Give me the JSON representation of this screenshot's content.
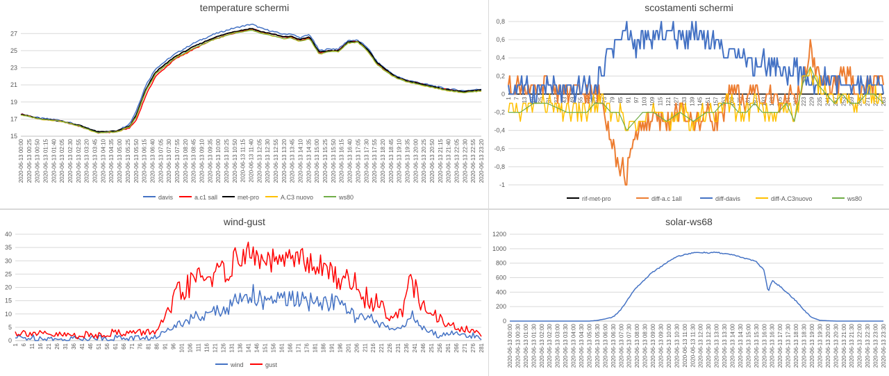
{
  "chart_data": [
    {
      "type": "line",
      "title": "temperature schermi",
      "ylim": [
        15,
        28
      ],
      "yticks": [
        15,
        17,
        19,
        21,
        23,
        25,
        27
      ],
      "x_labels": [
        "2020-06-13 00:00",
        "2020-06-13 00:25",
        "2020-06-13 00:50",
        "2020-06-13 01:15",
        "2020-06-13 01:40",
        "2020-06-13 02:05",
        "2020-06-13 02:30",
        "2020-06-13 02:55",
        "2020-06-13 03:20",
        "2020-06-13 03:45",
        "2020-06-13 04:10",
        "2020-06-13 04:35",
        "2020-06-13 05:00",
        "2020-06-13 05:25",
        "2020-06-13 05:50",
        "2020-06-13 06:15",
        "2020-06-13 06:40",
        "2020-06-13 07:05",
        "2020-06-13 07:30",
        "2020-06-13 07:55",
        "2020-06-13 08:20",
        "2020-06-13 08:45",
        "2020-06-13 09:10",
        "2020-06-13 09:35",
        "2020-06-13 10:00",
        "2020-06-13 10:25",
        "2020-06-13 10:50",
        "2020-06-13 11:15",
        "2020-06-13 11:40",
        "2020-06-13 12:05",
        "2020-06-13 12:30",
        "2020-06-13 12:55",
        "2020-06-13 13:20",
        "2020-06-13 13:45",
        "2020-06-13 14:10",
        "2020-06-13 14:35",
        "2020-06-13 15:00",
        "2020-06-13 15:25",
        "2020-06-13 15:50",
        "2020-06-13 16:15",
        "2020-06-13 16:40",
        "2020-06-13 17:05",
        "2020-06-13 17:30",
        "2020-06-13 17:55",
        "2020-06-13 18:20",
        "2020-06-13 18:45",
        "2020-06-13 19:10",
        "2020-06-13 19:35",
        "2020-06-13 20:00",
        "2020-06-13 20:25",
        "2020-06-13 20:50",
        "2020-06-13 21:15",
        "2020-06-13 21:40",
        "2020-06-13 22:05",
        "2020-06-13 22:30",
        "2020-06-13 22:55",
        "2020-06-13 23:20"
      ],
      "key_x": [
        0,
        12,
        24,
        36,
        48,
        60,
        68,
        72,
        78,
        84,
        96,
        108,
        120,
        132,
        144,
        150,
        156,
        164,
        168,
        174,
        180,
        186,
        192,
        198,
        204,
        210,
        216,
        222,
        228,
        234,
        240,
        252,
        264,
        276,
        287
      ],
      "series": [
        {
          "name": "davis",
          "color": "#4472c4",
          "values": [
            17.6,
            17.1,
            16.9,
            16.3,
            15.5,
            15.6,
            16.5,
            18.0,
            21.0,
            22.9,
            24.6,
            25.9,
            26.9,
            27.6,
            28.1,
            27.6,
            27.3,
            26.9,
            27.0,
            26.5,
            26.9,
            25.0,
            25.2,
            25.2,
            26.2,
            26.2,
            25.4,
            23.7,
            22.8,
            22.0,
            21.6,
            21.1,
            20.6,
            20.3,
            20.5
          ]
        },
        {
          "name": "a.c1 sall",
          "color": "#ff0000",
          "values": [
            17.6,
            17.0,
            16.8,
            16.2,
            15.4,
            15.5,
            16.0,
            16.9,
            19.8,
            22.0,
            24.0,
            25.2,
            26.3,
            27.0,
            27.6,
            27.2,
            27.0,
            26.6,
            26.6,
            26.2,
            26.5,
            24.7,
            25.0,
            25.0,
            26.0,
            26.1,
            25.1,
            23.5,
            22.6,
            21.9,
            21.5,
            21.0,
            20.5,
            20.2,
            20.4
          ]
        },
        {
          "name": "met-pro",
          "color": "#000000",
          "values": [
            17.6,
            17.0,
            16.8,
            16.3,
            15.5,
            15.6,
            16.2,
            17.5,
            20.5,
            22.5,
            24.3,
            25.5,
            26.5,
            27.2,
            27.6,
            27.2,
            27.0,
            26.6,
            26.7,
            26.3,
            26.6,
            24.8,
            25.0,
            25.0,
            26.0,
            26.1,
            25.2,
            23.6,
            22.7,
            21.9,
            21.5,
            21.0,
            20.5,
            20.2,
            20.4
          ]
        },
        {
          "name": "A.C3 nuovo",
          "color": "#ffc000",
          "values": [
            17.5,
            17.0,
            16.8,
            16.2,
            15.4,
            15.5,
            16.1,
            17.3,
            20.3,
            22.3,
            24.1,
            25.3,
            26.3,
            27.0,
            27.4,
            27.0,
            26.8,
            26.4,
            26.5,
            26.1,
            26.4,
            24.6,
            24.9,
            24.9,
            25.9,
            26.0,
            25.0,
            23.4,
            22.5,
            21.8,
            21.4,
            20.9,
            20.4,
            20.1,
            20.3
          ]
        },
        {
          "name": "ws80",
          "color": "#70ad47",
          "values": [
            17.5,
            17.0,
            16.8,
            16.2,
            15.4,
            15.5,
            16.1,
            17.3,
            20.3,
            22.3,
            24.1,
            25.3,
            26.3,
            27.0,
            27.4,
            27.0,
            26.8,
            26.4,
            26.5,
            26.1,
            26.4,
            24.6,
            24.9,
            24.9,
            25.9,
            26.0,
            25.0,
            23.4,
            22.5,
            21.8,
            21.4,
            20.9,
            20.4,
            20.1,
            20.3
          ]
        }
      ]
    },
    {
      "type": "line",
      "title": "scostamenti schermi",
      "ylim": [
        -1,
        0.8
      ],
      "yticks": [
        "0,8",
        "0,6",
        "0,4",
        "0,2",
        "0",
        "-0,2",
        "-0,4",
        "-0,6",
        "-0,8",
        "-1"
      ],
      "ytick_values": [
        0.8,
        0.6,
        0.4,
        0.2,
        0,
        -0.2,
        -0.4,
        -0.6,
        -0.8,
        -1
      ],
      "x_labels": [
        "1",
        "7",
        "13",
        "19",
        "25",
        "31",
        "37",
        "43",
        "49",
        "55",
        "61",
        "67",
        "73",
        "79",
        "85",
        "91",
        "97",
        "103",
        "109",
        "115",
        "121",
        "127",
        "133",
        "139",
        "145",
        "151",
        "157",
        "163",
        "169",
        "175",
        "181",
        "187",
        "193",
        "199",
        "205",
        "211",
        "217",
        "223",
        "229",
        "235",
        "241",
        "247",
        "253",
        "259",
        "265",
        "271",
        "277",
        "283"
      ],
      "key_x": [
        1,
        10,
        20,
        30,
        45,
        60,
        66,
        72,
        78,
        84,
        90,
        96,
        102,
        110,
        120,
        130,
        140,
        150,
        156,
        162,
        168,
        174,
        180,
        186,
        192,
        198,
        204,
        210,
        216,
        222,
        228,
        234,
        240,
        246,
        252,
        258,
        264,
        270,
        276,
        283
      ],
      "series": [
        {
          "name": "rif-met-pro",
          "color": "#000000",
          "values": [
            0,
            0,
            0,
            0,
            0,
            0,
            0,
            0,
            0,
            0,
            0,
            0,
            0,
            0,
            0,
            0,
            0,
            0,
            0,
            0,
            0,
            0,
            0,
            0,
            0,
            0,
            0,
            0,
            0,
            0,
            0,
            0,
            0,
            0,
            0,
            0,
            0,
            0,
            0,
            0
          ]
        },
        {
          "name": "diff-a.c 1all",
          "color": "#ed7d31",
          "values": [
            0.1,
            0.1,
            0,
            0.1,
            0,
            0,
            0,
            -0.1,
            -0.4,
            -0.8,
            -0.9,
            -0.5,
            -0.3,
            -0.3,
            -0.3,
            -0.2,
            -0.3,
            -0.2,
            -0.3,
            -0.2,
            0,
            0,
            -0.1,
            0.1,
            -0.1,
            0,
            -0.1,
            0,
            -0.1,
            0.1,
            0.5,
            0.2,
            0.1,
            0.1,
            0.2,
            0.2,
            0.1,
            0.1,
            0.1,
            0.1
          ]
        },
        {
          "name": "diff-davis",
          "color": "#4472c4",
          "values": [
            0,
            0.1,
            0,
            0.1,
            0,
            0.1,
            0,
            0.3,
            0.5,
            0.6,
            0.7,
            0.5,
            0.6,
            0.6,
            0.7,
            0.6,
            0.7,
            0.6,
            0.6,
            0.5,
            0.4,
            0.5,
            0.4,
            0.3,
            0.4,
            0.3,
            0.3,
            0.2,
            0.3,
            0.2,
            0.1,
            0.1,
            0.2,
            0.1,
            0.1,
            0,
            0.1,
            0.1,
            0.1,
            0
          ]
        },
        {
          "name": "diff-A.C3nuovo",
          "color": "#ffc000",
          "values": [
            -0.2,
            -0.2,
            -0.1,
            -0.1,
            -0.2,
            -0.2,
            -0.1,
            -0.1,
            -0.2,
            -0.2,
            -0.4,
            -0.3,
            -0.2,
            -0.2,
            -0.3,
            -0.2,
            -0.3,
            -0.2,
            -0.2,
            -0.1,
            -0.1,
            -0.2,
            -0.2,
            -0.1,
            -0.2,
            -0.2,
            -0.2,
            -0.1,
            -0.3,
            0.1,
            0.3,
            0.1,
            0,
            -0.1,
            0,
            -0.1,
            -0.1,
            0,
            0,
            -0.1
          ]
        },
        {
          "name": "ws80",
          "color": "#70ad47",
          "values": [
            -0.2,
            -0.2,
            -0.1,
            -0.1,
            -0.2,
            -0.2,
            -0.1,
            -0.1,
            -0.2,
            -0.2,
            -0.4,
            -0.3,
            -0.2,
            -0.2,
            -0.3,
            -0.2,
            -0.3,
            -0.2,
            -0.2,
            -0.1,
            -0.1,
            -0.2,
            -0.2,
            -0.1,
            -0.2,
            -0.2,
            -0.2,
            -0.1,
            -0.3,
            0.1,
            0.3,
            0.1,
            0,
            -0.1,
            0,
            -0.1,
            -0.1,
            0,
            0,
            -0.1
          ]
        }
      ]
    },
    {
      "type": "line",
      "title": "wind-gust",
      "ylim": [
        0,
        40
      ],
      "yticks": [
        0,
        5,
        10,
        15,
        20,
        25,
        30,
        35,
        40
      ],
      "x_labels": [
        "1",
        "6",
        "11",
        "16",
        "21",
        "26",
        "31",
        "36",
        "41",
        "46",
        "51",
        "56",
        "61",
        "66",
        "71",
        "76",
        "81",
        "86",
        "91",
        "96",
        "101",
        "106",
        "111",
        "116",
        "121",
        "126",
        "131",
        "136",
        "141",
        "146",
        "151",
        "156",
        "161",
        "166",
        "171",
        "176",
        "181",
        "186",
        "191",
        "196",
        "201",
        "206",
        "211",
        "216",
        "221",
        "226",
        "231",
        "236",
        "241",
        "246",
        "251",
        "256",
        "261",
        "266",
        "271",
        "276",
        "281"
      ],
      "key_x": [
        1,
        10,
        20,
        30,
        40,
        50,
        60,
        70,
        80,
        88,
        94,
        100,
        106,
        112,
        118,
        124,
        130,
        136,
        142,
        148,
        154,
        160,
        166,
        172,
        178,
        184,
        190,
        196,
        202,
        208,
        214,
        220,
        226,
        232,
        238,
        242,
        248,
        254,
        260,
        266,
        272,
        278,
        285
      ],
      "series": [
        {
          "name": "wind",
          "color": "#4472c4",
          "values": [
            1,
            1,
            1,
            0,
            1,
            1,
            1,
            1,
            1,
            1,
            5,
            6,
            8,
            9,
            9,
            12,
            12,
            15,
            18,
            17,
            13,
            16,
            15,
            16,
            14,
            15,
            14,
            15,
            12,
            9,
            8,
            8,
            5,
            4,
            6,
            10,
            5,
            3,
            2,
            3,
            2,
            2,
            1
          ]
        },
        {
          "name": "gust",
          "color": "#ff0000",
          "values": [
            3,
            3,
            2,
            2,
            2,
            2,
            3,
            3,
            3,
            4,
            10,
            17,
            20,
            24,
            24,
            25,
            26,
            31,
            33,
            31,
            29,
            30,
            29,
            33,
            29,
            28,
            27,
            24,
            23,
            22,
            16,
            15,
            12,
            9,
            13,
            24,
            13,
            10,
            8,
            6,
            4,
            4,
            2
          ]
        }
      ]
    },
    {
      "type": "line",
      "title": "solar-ws68",
      "ylim": [
        0,
        1200
      ],
      "yticks": [
        0,
        200,
        400,
        600,
        800,
        1000,
        1200
      ],
      "x_labels": [
        "2020-06-13 00:00",
        "2020-06-13 00:30",
        "2020-06-13 01:00",
        "2020-06-13 01:30",
        "2020-06-13 02:00",
        "2020-06-13 02:30",
        "2020-06-13 03:00",
        "2020-06-13 03:30",
        "2020-06-13 04:00",
        "2020-06-13 04:30",
        "2020-06-13 05:00",
        "2020-06-13 05:30",
        "2020-06-13 06:00",
        "2020-06-13 06:30",
        "2020-06-13 07:00",
        "2020-06-13 07:30",
        "2020-06-13 08:00",
        "2020-06-13 08:30",
        "2020-06-13 09:00",
        "2020-06-13 09:30",
        "2020-06-13 10:00",
        "2020-06-13 10:30",
        "2020-06-13 11:00",
        "2020-06-13 11:30",
        "2020-06-13 12:00",
        "2020-06-13 12:30",
        "2020-06-13 13:00",
        "2020-06-13 13:30",
        "2020-06-13 14:00",
        "2020-06-13 14:30",
        "2020-06-13 15:00",
        "2020-06-13 15:30",
        "2020-06-13 16:00",
        "2020-06-13 16:30",
        "2020-06-13 17:00",
        "2020-06-13 17:30",
        "2020-06-13 18:00",
        "2020-06-13 18:30",
        "2020-06-13 19:00",
        "2020-06-13 19:30",
        "2020-06-13 20:00",
        "2020-06-13 20:30",
        "2020-06-13 21:00",
        "2020-06-13 21:30",
        "2020-06-13 22:00",
        "2020-06-13 22:30",
        "2020-06-13 23:00",
        "2020-06-13 23:30"
      ],
      "key_x": [
        0,
        5,
        10,
        11,
        12,
        13,
        14,
        15,
        16,
        17,
        18,
        19,
        20,
        21,
        22,
        23,
        24,
        25,
        26,
        27,
        28,
        29,
        30,
        31,
        32,
        32.5,
        33,
        34,
        35,
        36,
        37,
        38,
        39,
        40,
        41,
        42,
        47
      ],
      "series": [
        {
          "name": "solar-ws68",
          "color": "#4472c4",
          "values": [
            0,
            0,
            0,
            10,
            30,
            60,
            160,
            330,
            470,
            580,
            680,
            750,
            830,
            890,
            920,
            940,
            950,
            940,
            950,
            930,
            920,
            880,
            860,
            820,
            700,
            400,
            560,
            480,
            380,
            280,
            150,
            50,
            10,
            5,
            0,
            0,
            0
          ]
        }
      ]
    }
  ]
}
